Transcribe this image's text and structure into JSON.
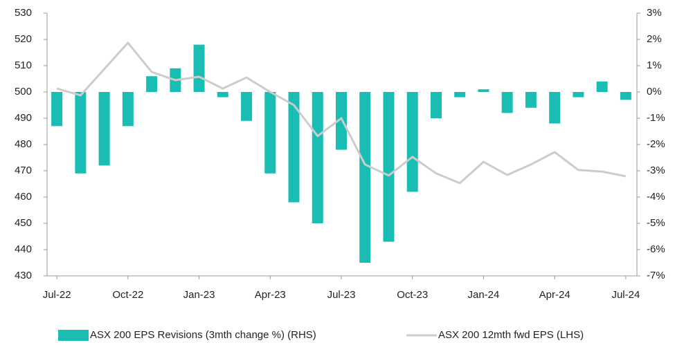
{
  "chart_data": {
    "type": "bar+line",
    "categories": [
      "Jul-22",
      null,
      null,
      "Oct-22",
      null,
      null,
      "Jan-23",
      null,
      null,
      "Apr-23",
      null,
      null,
      "Jul-23",
      null,
      null,
      "Oct-23",
      null,
      null,
      "Jan-24",
      null,
      null,
      "Apr-24",
      null,
      null,
      "Jul-24"
    ],
    "series": [
      {
        "name": "ASX 200 EPS Revisions (3mth change %) (RHS)",
        "type": "bar",
        "axis": "y2",
        "color": "#19bdb4",
        "values": [
          -1.3,
          -3.1,
          -2.8,
          -1.3,
          0.6,
          0.9,
          1.8,
          -0.2,
          -1.1,
          -3.1,
          -4.2,
          -5.0,
          -2.2,
          -6.5,
          -5.7,
          -3.8,
          -1.0,
          -0.2,
          0.1,
          -0.8,
          -0.6,
          -1.2,
          -0.2,
          0.4,
          -0.3
        ]
      },
      {
        "name": "ASX 200 12mth fwd EPS (LHS)",
        "type": "line",
        "axis": "y",
        "color": "#cccccc",
        "values": [
          501.3,
          498.7,
          508.7,
          518.7,
          507.6,
          504.5,
          505.8,
          501.3,
          505.5,
          500,
          495,
          483.2,
          490,
          472.4,
          468.2,
          475.3,
          469,
          465.3,
          473.4,
          468.4,
          472.4,
          477.1,
          470.3,
          469.7,
          467.9
        ]
      }
    ],
    "ylim": [
      430,
      530
    ],
    "yticks": [
      430,
      440,
      450,
      460,
      470,
      480,
      490,
      500,
      510,
      520,
      530
    ],
    "y2lim": [
      -7,
      3
    ],
    "y2ticks": [
      {
        "value": -7,
        "label": "-7%"
      },
      {
        "value": -6,
        "label": "-6%"
      },
      {
        "value": -5,
        "label": "-5%"
      },
      {
        "value": -4,
        "label": "-4%"
      },
      {
        "value": -3,
        "label": "-3%"
      },
      {
        "value": -2,
        "label": "-2%"
      },
      {
        "value": -1,
        "label": "-1%"
      },
      {
        "value": 0,
        "label": "0%"
      },
      {
        "value": 1,
        "label": "1%"
      },
      {
        "value": 2,
        "label": "2%"
      },
      {
        "value": 3,
        "label": "3%"
      }
    ],
    "legend": "bottom"
  }
}
